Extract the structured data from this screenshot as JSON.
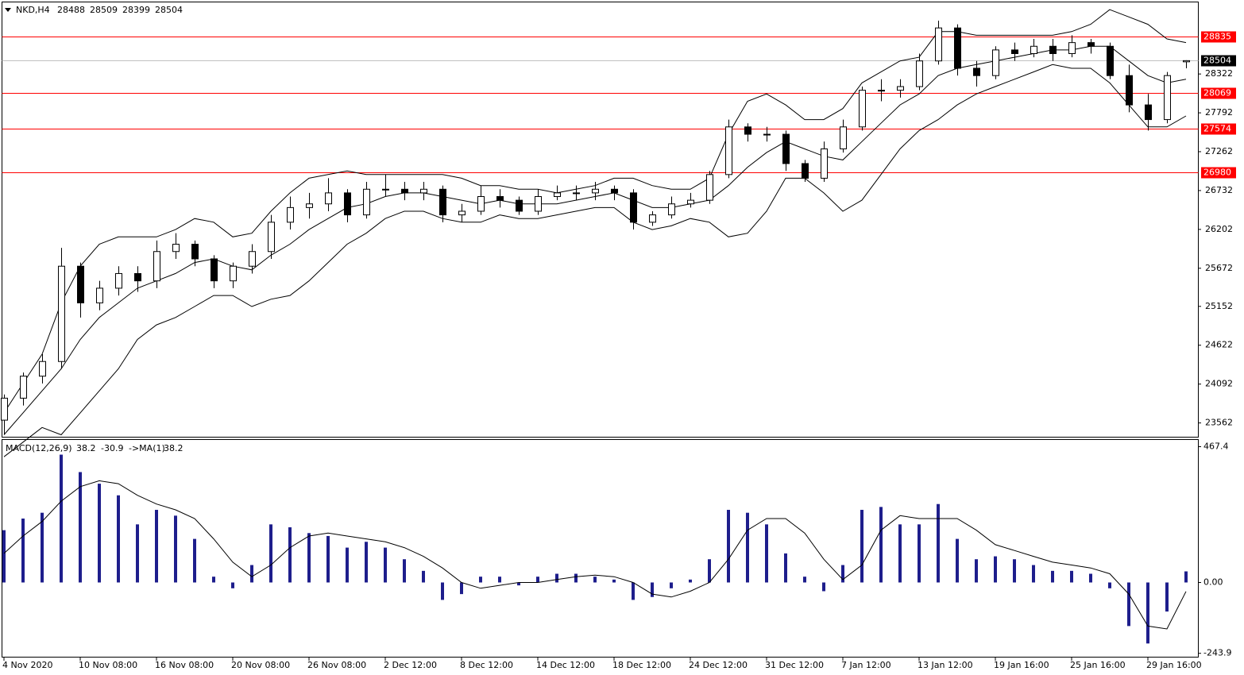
{
  "chart_data": [
    {
      "type": "candlestick",
      "title": "NKD,H4",
      "categories": [
        "4 Nov 2020",
        null,
        null,
        null,
        "10 Nov 08:00",
        null,
        null,
        null,
        "16 Nov 08:00",
        null,
        null,
        null,
        "20 Nov 08:00",
        null,
        null,
        null,
        "26 Nov 08:00",
        null,
        null,
        null,
        "2 Dec 12:00",
        null,
        null,
        null,
        "8 Dec 12:00",
        null,
        null,
        null,
        "14 Dec 12:00",
        null,
        null,
        null,
        "18 Dec 12:00",
        null,
        null,
        null,
        "24 Dec 12:00",
        null,
        null,
        null,
        "31 Dec 12:00",
        null,
        null,
        null,
        "7 Jan 12:00",
        null,
        null,
        null,
        "13 Jan 12:00",
        null,
        null,
        null,
        "19 Jan 16:00",
        null,
        null,
        null,
        "25 Jan 16:00",
        null,
        null,
        null,
        "29 Jan 16:00",
        null,
        null
      ],
      "open": [
        23600,
        23900,
        24200,
        24400,
        25700,
        25200,
        25400,
        25600,
        25500,
        25900,
        26000,
        25800,
        25500,
        25700,
        25900,
        26300,
        26500,
        26550,
        26700,
        26400,
        26750,
        26750,
        26700,
        26750,
        26400,
        26450,
        26650,
        26600,
        26450,
        26650,
        26700,
        26700,
        26750,
        26700,
        26300,
        26400,
        26550,
        26600,
        26950,
        27600,
        27500,
        27500,
        27100,
        26900,
        27300,
        27600,
        28100,
        28100,
        28150,
        28500,
        28950,
        28400,
        28300,
        28650,
        28600,
        28700,
        28600,
        28750,
        28700,
        28300,
        27900,
        27700,
        28488
      ],
      "high": [
        23950,
        24250,
        24500,
        25950,
        25750,
        25500,
        25700,
        25700,
        26050,
        26150,
        26050,
        25850,
        25750,
        26000,
        26400,
        26650,
        26700,
        26900,
        26750,
        26850,
        26950,
        26850,
        26850,
        26800,
        26550,
        26800,
        26750,
        26650,
        26750,
        26800,
        26800,
        26850,
        26800,
        26750,
        26450,
        26650,
        26700,
        27000,
        27700,
        27650,
        27600,
        27550,
        27150,
        27400,
        27700,
        28150,
        28250,
        28250,
        28600,
        29050,
        29000,
        28500,
        28700,
        28750,
        28800,
        28800,
        28850,
        28800,
        28750,
        28450,
        28050,
        28350,
        28509
      ],
      "low": [
        23400,
        23800,
        24100,
        24300,
        25000,
        25100,
        25300,
        25350,
        25400,
        25800,
        25700,
        25400,
        25400,
        25600,
        25800,
        26200,
        26350,
        26450,
        26300,
        26350,
        26650,
        26600,
        26600,
        26300,
        26300,
        26400,
        26500,
        26400,
        26400,
        26600,
        26600,
        26600,
        26600,
        26200,
        26250,
        26350,
        26500,
        26550,
        26900,
        27400,
        27400,
        27000,
        26850,
        26850,
        27250,
        27550,
        27950,
        28000,
        28100,
        28450,
        28300,
        28150,
        28250,
        28500,
        28550,
        28500,
        28550,
        28600,
        28250,
        27800,
        27550,
        27650,
        28399
      ],
      "close": [
        23900,
        24200,
        24400,
        25700,
        25200,
        25400,
        25600,
        25500,
        25900,
        26000,
        25800,
        25500,
        25700,
        25900,
        26300,
        26500,
        26550,
        26700,
        26400,
        26750,
        26750,
        26700,
        26750,
        26400,
        26450,
        26650,
        26600,
        26450,
        26650,
        26700,
        26700,
        26750,
        26700,
        26300,
        26400,
        26550,
        26600,
        26950,
        27600,
        27500,
        27500,
        27100,
        26900,
        27300,
        27600,
        28100,
        28100,
        28150,
        28500,
        28950,
        28400,
        28300,
        28650,
        28600,
        28700,
        28600,
        28750,
        28700,
        28300,
        27900,
        27700,
        28300,
        28504
      ],
      "upper_band": [
        23700,
        24100,
        24500,
        25200,
        25700,
        26000,
        26100,
        26100,
        26100,
        26200,
        26350,
        26300,
        26100,
        26150,
        26450,
        26700,
        26900,
        26950,
        27000,
        26950,
        26950,
        26950,
        26950,
        26950,
        26900,
        26800,
        26800,
        26750,
        26750,
        26700,
        26750,
        26800,
        26900,
        26900,
        26800,
        26750,
        26750,
        26900,
        27500,
        27950,
        28050,
        27900,
        27700,
        27700,
        27850,
        28200,
        28350,
        28500,
        28550,
        28900,
        28900,
        28850,
        28850,
        28850,
        28850,
        28850,
        28900,
        29000,
        29200,
        29100,
        29000,
        28800,
        28750
      ],
      "middle_band": [
        23400,
        23700,
        24000,
        24300,
        24700,
        25000,
        25200,
        25400,
        25500,
        25600,
        25750,
        25800,
        25700,
        25650,
        25850,
        26000,
        26200,
        26350,
        26500,
        26550,
        26650,
        26700,
        26700,
        26650,
        26600,
        26550,
        26600,
        26550,
        26550,
        26550,
        26600,
        26650,
        26700,
        26600,
        26500,
        26500,
        26550,
        26600,
        26800,
        27050,
        27250,
        27400,
        27300,
        27200,
        27150,
        27400,
        27650,
        27900,
        28050,
        28300,
        28400,
        28450,
        28500,
        28550,
        28600,
        28650,
        28650,
        28700,
        28700,
        28500,
        28300,
        28200,
        28250
      ],
      "lower_band": [
        23100,
        23300,
        23500,
        23400,
        23700,
        24000,
        24300,
        24700,
        24900,
        25000,
        25150,
        25300,
        25300,
        25150,
        25250,
        25300,
        25500,
        25750,
        26000,
        26150,
        26350,
        26450,
        26450,
        26350,
        26300,
        26300,
        26400,
        26350,
        26350,
        26400,
        26450,
        26500,
        26500,
        26300,
        26200,
        26250,
        26350,
        26300,
        26100,
        26150,
        26450,
        26900,
        26900,
        26700,
        26450,
        26600,
        26950,
        27300,
        27550,
        27700,
        27900,
        28050,
        28150,
        28250,
        28350,
        28450,
        28400,
        28400,
        28200,
        27900,
        27600,
        27600,
        27750
      ],
      "ylim": [
        23368,
        29304
      ],
      "yticks": [
        28322,
        27792,
        27262,
        26732,
        26202,
        25672,
        25152,
        24622,
        24092,
        23562
      ],
      "levels": [
        28835,
        28069,
        27574,
        26980
      ],
      "level_color": "#ff0000"
    },
    {
      "type": "macd",
      "title": "MACD(12,26,9)",
      "signal_title": "->MA(1)",
      "values": [
        180,
        220,
        240,
        440,
        380,
        340,
        300,
        200,
        250,
        230,
        150,
        20,
        -20,
        60,
        200,
        190,
        170,
        160,
        120,
        140,
        120,
        80,
        40,
        -60,
        -40,
        20,
        20,
        -10,
        20,
        30,
        30,
        20,
        10,
        -60,
        -50,
        -20,
        10,
        80,
        250,
        240,
        200,
        100,
        20,
        -30,
        60,
        250,
        260,
        200,
        200,
        270,
        150,
        80,
        90,
        80,
        60,
        40,
        40,
        30,
        -20,
        -150,
        -210,
        -100,
        38.2
      ],
      "signal": [
        100,
        160,
        210,
        280,
        330,
        350,
        340,
        300,
        270,
        250,
        220,
        150,
        70,
        20,
        60,
        120,
        160,
        170,
        160,
        150,
        140,
        120,
        90,
        50,
        0,
        -20,
        -10,
        0,
        0,
        10,
        20,
        25,
        20,
        0,
        -40,
        -50,
        -30,
        0,
        80,
        180,
        220,
        220,
        170,
        80,
        10,
        60,
        180,
        230,
        220,
        220,
        220,
        180,
        130,
        110,
        90,
        70,
        60,
        50,
        30,
        -40,
        -150,
        -160,
        -30.9
      ],
      "color": "#1e1e8c",
      "ylim": [
        -257,
        492
      ],
      "yticks": [
        467.4,
        {
          "value": 0,
          "label": "0.00"
        },
        -243.9
      ]
    }
  ]
}
